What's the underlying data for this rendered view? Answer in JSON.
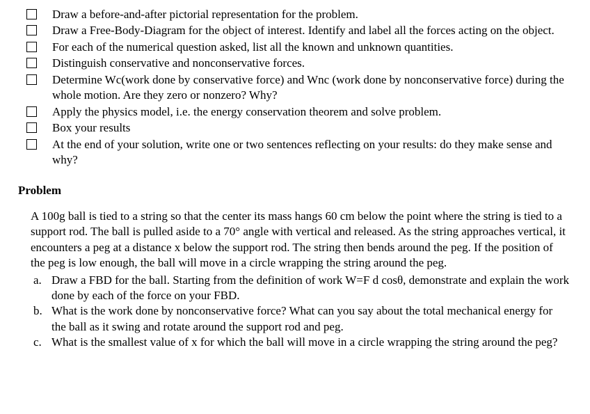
{
  "checklist": {
    "items": [
      "Draw a before-and-after pictorial representation for the problem.",
      "Draw a Free-Body-Diagram for the object of interest. Identify and label all the forces acting on the object.",
      "For each of the numerical question asked, list all the known and unknown quantities.",
      "Distinguish conservative and nonconservative forces.",
      "Determine Wc(work done by conservative force) and Wnc (work done by nonconservative force) during the whole motion. Are they zero or nonzero? Why?",
      "Apply the physics model, i.e. the energy conservation theorem and solve problem.",
      "Box your results",
      "At the end of your solution, write one or two sentences reflecting on your results: do they make sense and why?"
    ]
  },
  "problem": {
    "heading": "Problem",
    "body": "A 100g ball is tied to a string so that the center its mass hangs 60 cm below the point where the string is tied to a support rod.  The ball is pulled aside to a 70° angle with vertical and released.  As the string approaches vertical, it encounters a peg at a distance x below the support rod.  The string then bends around the peg.  If the position of the peg is low enough, the ball will move in a circle wrapping the string around the peg.",
    "subparts": [
      {
        "letter": "a.",
        "text": "Draw a FBD for the ball. Starting from the definition of work W=F d cosθ, demonstrate and explain the work done by each of the force on your FBD."
      },
      {
        "letter": "b.",
        "text": "What is the work done by nonconservative force? What can you say about the total mechanical energy for the ball as it swing and rotate around the support rod and peg."
      },
      {
        "letter": "c.",
        "text": "What is the smallest value of x for which the ball will move in a circle wrapping the string around the peg?"
      }
    ]
  }
}
